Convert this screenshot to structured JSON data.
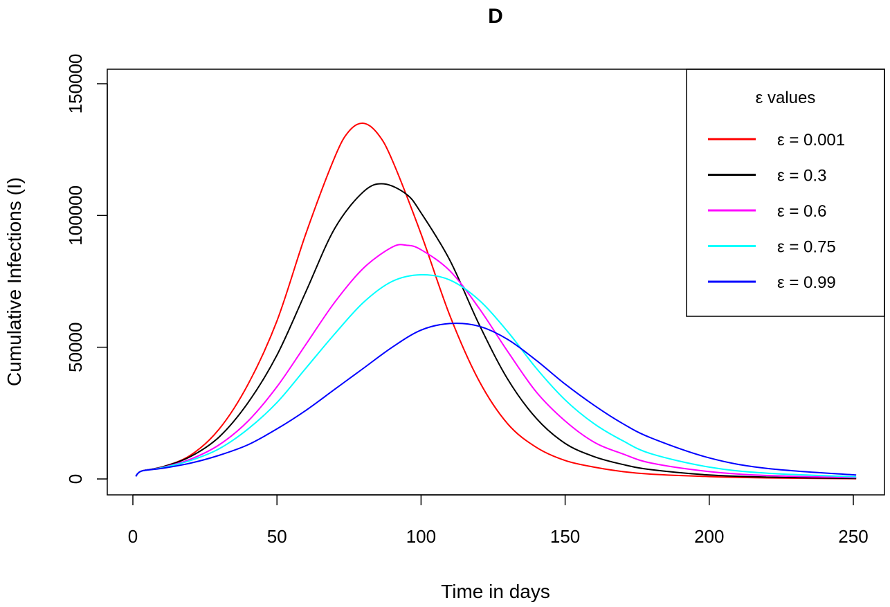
{
  "chart_data": {
    "type": "line",
    "title": "D",
    "xlabel": "Time in days",
    "ylabel": "Cumulative Infections (I)",
    "xlim": [
      1,
      251
    ],
    "ylim": [
      0,
      150000
    ],
    "x_ticks": [
      "0",
      "50",
      "100",
      "150",
      "200",
      "250"
    ],
    "y_ticks": [
      "0",
      "50000",
      "100000",
      "150000"
    ],
    "grid": false,
    "legend": {
      "title": "ε values",
      "position": "top-right",
      "entries": [
        "ε = 0.001",
        "ε = 0.3",
        "ε = 0.6",
        "ε = 0.75",
        "ε = 0.99"
      ]
    },
    "series": [
      {
        "name": "ε = 0.001",
        "color": "#ff0000",
        "x": [
          1,
          3,
          10,
          20,
          30,
          40,
          50,
          60,
          70,
          75,
          80,
          85,
          90,
          100,
          110,
          120,
          130,
          140,
          150,
          160,
          170,
          180,
          200,
          220,
          251
        ],
        "y": [
          1000,
          3000,
          4500,
          9000,
          19000,
          36000,
          60000,
          93000,
          122000,
          132000,
          135000,
          131000,
          121000,
          93000,
          62000,
          37500,
          21000,
          12000,
          7000,
          4500,
          2800,
          1800,
          900,
          400,
          100
        ]
      },
      {
        "name": "ε = 0.3",
        "color": "#000000",
        "x": [
          1,
          3,
          10,
          20,
          30,
          40,
          50,
          60,
          70,
          80,
          87,
          95,
          100,
          110,
          120,
          130,
          140,
          150,
          160,
          170,
          180,
          200,
          220,
          251
        ],
        "y": [
          1000,
          3000,
          4500,
          8500,
          16000,
          29000,
          47000,
          71000,
          95000,
          109000,
          112000,
          108000,
          101000,
          83000,
          59000,
          38000,
          23000,
          13500,
          8500,
          5500,
          3500,
          1500,
          700,
          200
        ]
      },
      {
        "name": "ε = 0.6",
        "color": "#ff00ff",
        "x": [
          1,
          3,
          10,
          20,
          30,
          40,
          50,
          60,
          70,
          80,
          90,
          95,
          100,
          110,
          120,
          130,
          140,
          150,
          160,
          170,
          180,
          200,
          220,
          251
        ],
        "y": [
          1000,
          3000,
          4300,
          7500,
          13000,
          22000,
          35000,
          51000,
          67000,
          80000,
          88000,
          88700,
          87000,
          79000,
          65000,
          48500,
          33000,
          22000,
          14000,
          9500,
          6000,
          2800,
          1300,
          500
        ]
      },
      {
        "name": "ε = 0.75",
        "color": "#00ffff",
        "x": [
          1,
          3,
          10,
          20,
          30,
          40,
          50,
          60,
          70,
          80,
          90,
          100,
          110,
          120,
          130,
          140,
          150,
          160,
          170,
          180,
          200,
          220,
          251
        ],
        "y": [
          1000,
          3000,
          4200,
          7000,
          11500,
          19000,
          29000,
          42000,
          55000,
          67000,
          75000,
          77500,
          75500,
          68000,
          56000,
          42000,
          30000,
          21000,
          14500,
          9500,
          4500,
          2200,
          800
        ]
      },
      {
        "name": "ε = 0.99",
        "color": "#0000ff",
        "x": [
          1,
          3,
          10,
          20,
          30,
          40,
          50,
          60,
          70,
          80,
          90,
          100,
          110,
          120,
          130,
          140,
          150,
          160,
          170,
          180,
          200,
          220,
          251
        ],
        "y": [
          1000,
          3000,
          4000,
          6000,
          9000,
          13000,
          19000,
          26000,
          34000,
          42000,
          50000,
          56500,
          59000,
          58000,
          53000,
          45000,
          36000,
          28000,
          21000,
          15500,
          8000,
          4000,
          1500
        ]
      }
    ]
  }
}
